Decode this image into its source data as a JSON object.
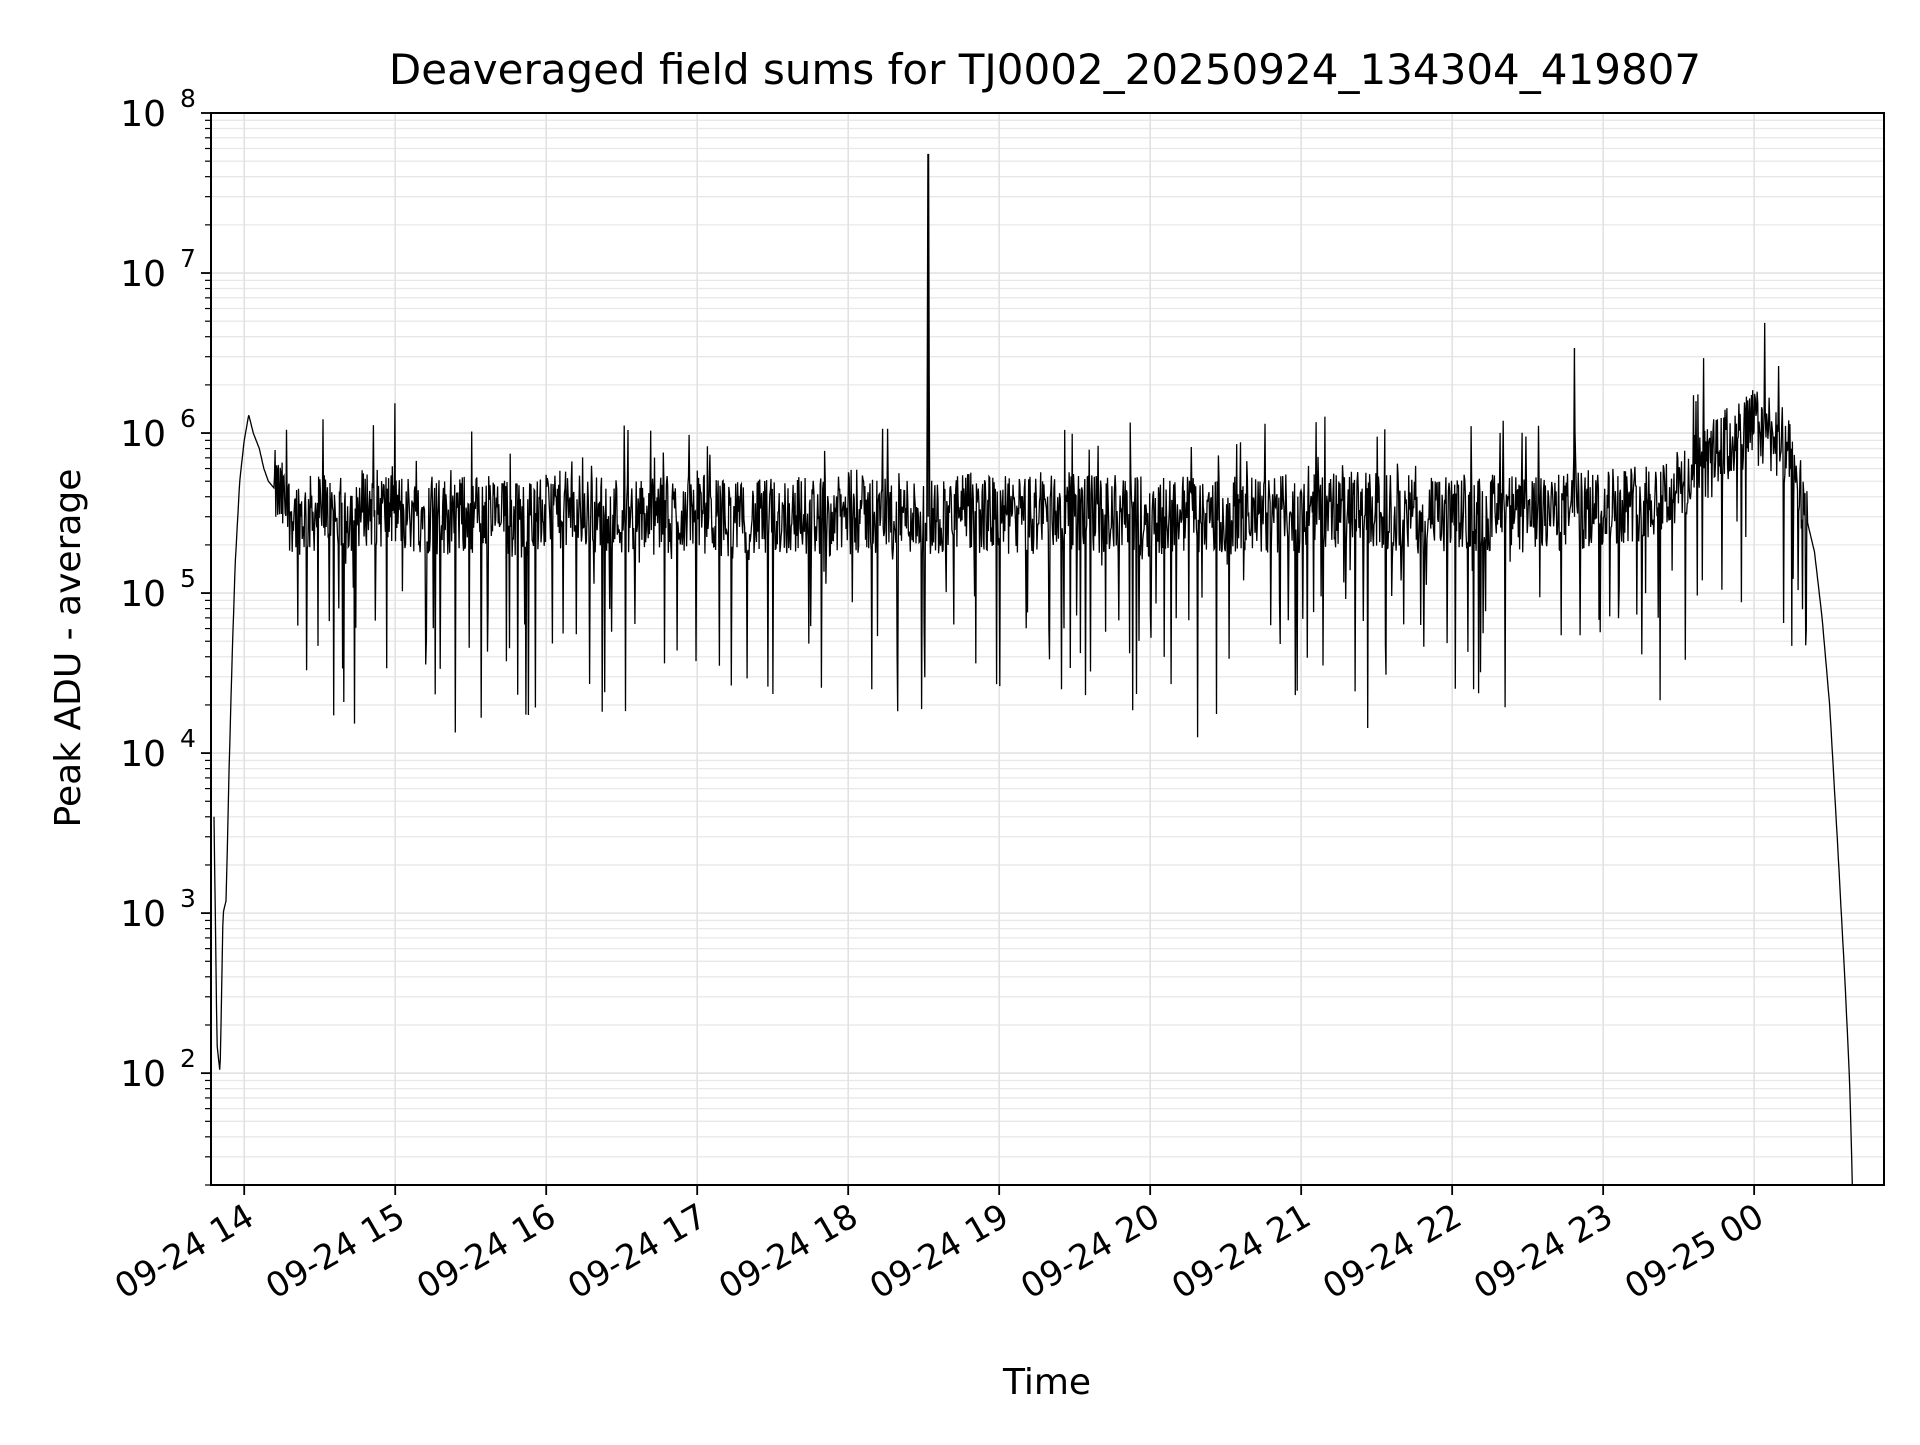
{
  "chart_data": {
    "type": "line",
    "title": "Deaveraged field sums for TJ0002_20250924_134304_419807",
    "xlabel": "Time",
    "ylabel": "Peak ADU - average",
    "yscale": "log",
    "ylim": [
      20,
      100000000
    ],
    "xlim_hours_since_09_24_00": [
      13.78,
      24.86
    ],
    "x_tick_labels": [
      "09-24 14",
      "09-24 15",
      "09-24 16",
      "09-24 17",
      "09-24 18",
      "09-24 19",
      "09-24 20",
      "09-24 21",
      "09-24 22",
      "09-24 23",
      "09-25 00"
    ],
    "x_tick_hours": [
      14,
      15,
      16,
      17,
      18,
      19,
      20,
      21,
      22,
      23,
      24
    ],
    "y_tick_exponents": [
      "2",
      "3",
      "4",
      "5",
      "6",
      "7",
      "8"
    ],
    "y_tick_values": [
      100,
      1000,
      10000,
      100000,
      1000000,
      10000000,
      100000000
    ],
    "y_tick_base": "10",
    "grid": true,
    "line_color": "#000000",
    "series": [
      {
        "name": "Peak ADU - average",
        "x_hours": [
          13.8,
          13.82,
          13.84,
          13.86,
          13.88,
          13.9,
          13.92,
          13.94,
          13.97,
          14.0,
          14.03,
          14.06,
          14.1,
          14.13,
          14.16,
          14.2,
          14.25,
          14.3,
          14.4,
          14.52,
          14.6,
          14.8,
          15.05,
          15.3,
          15.6,
          15.8,
          16.1,
          16.4,
          16.7,
          17.0,
          17.3,
          17.65,
          17.95,
          18.3,
          18.52,
          18.53,
          18.54,
          18.8,
          19.1,
          19.4,
          19.7,
          20.0,
          20.3,
          20.55,
          20.9,
          21.25,
          21.6,
          21.9,
          22.0,
          22.3,
          22.6,
          22.8,
          22.81,
          22.82,
          23.0,
          23.3,
          23.5,
          23.6,
          23.8,
          24.0,
          24.1,
          24.2,
          24.3,
          24.4,
          24.45,
          24.5,
          24.55,
          24.6,
          24.63,
          24.64,
          24.65
        ],
        "values": [
          4000,
          150,
          100,
          1000,
          1200,
          8000,
          40000,
          150000,
          500000,
          900000,
          1300000,
          1000000,
          800000,
          600000,
          500000,
          450000,
          380000,
          320000,
          300000,
          330000,
          290000,
          350000,
          320000,
          300000,
          320000,
          280000,
          330000,
          310000,
          300000,
          320000,
          280000,
          310000,
          300000,
          320000,
          300000,
          55000000,
          300000,
          320000,
          300000,
          330000,
          310000,
          300000,
          320000,
          300000,
          310000,
          330000,
          320000,
          300000,
          310000,
          320000,
          300000,
          330000,
          3400000,
          320000,
          350000,
          380000,
          450000,
          550000,
          800000,
          1100000,
          1050000,
          800000,
          450000,
          180000,
          70000,
          20000,
          3000,
          400,
          100,
          50,
          20
        ]
      }
    ]
  }
}
